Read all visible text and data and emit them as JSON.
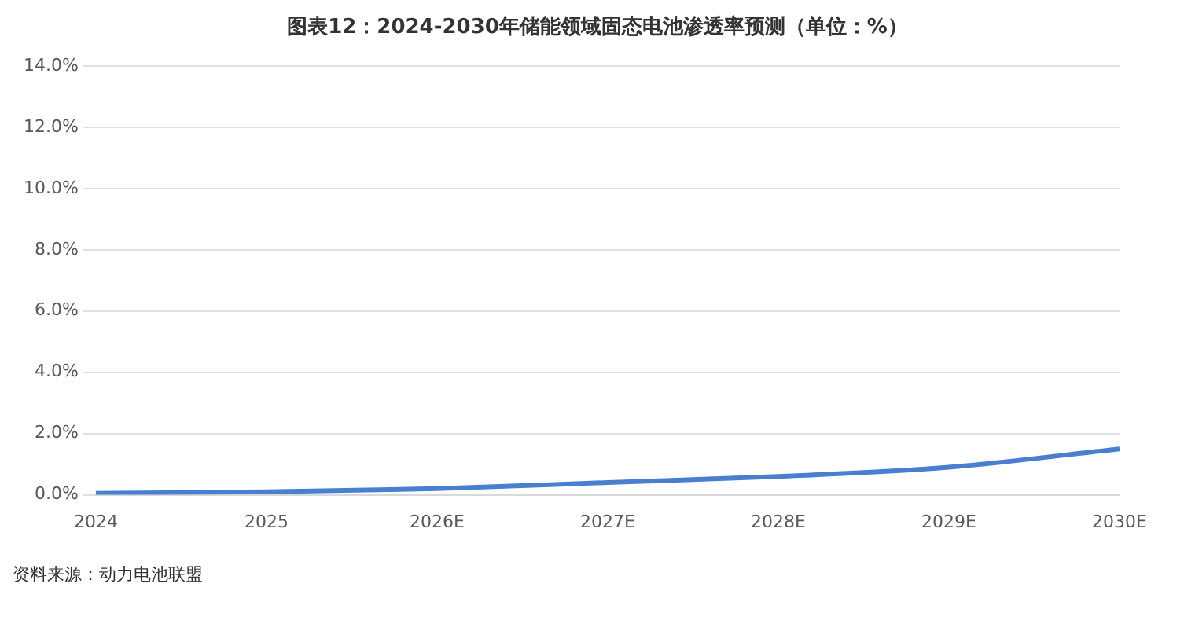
{
  "chart_data": {
    "type": "line",
    "title": "图表12：2024-2030年储能领域固态电池渗透率预测（单位：%）",
    "categories": [
      "2024",
      "2025",
      "2026E",
      "2027E",
      "2028E",
      "2029E",
      "2030E"
    ],
    "series": [
      {
        "color": "#4a7fd0",
        "values": [
          0.05,
          0.1,
          0.2,
          0.4,
          0.6,
          0.9,
          1.5
        ]
      }
    ],
    "ylim": [
      0,
      14
    ],
    "yticks": [
      {
        "value": 0,
        "label": "0.0%"
      },
      {
        "value": 2,
        "label": "2.0%"
      },
      {
        "value": 4,
        "label": "4.0%"
      },
      {
        "value": 6,
        "label": "6.0%"
      },
      {
        "value": 8,
        "label": "8.0%"
      },
      {
        "value": 10,
        "label": "10.0%"
      },
      {
        "value": 12,
        "label": "12.0%"
      },
      {
        "value": 14,
        "label": "14.0%"
      }
    ],
    "grid": "y",
    "marker": "none",
    "line_style": "solid",
    "annotations": [
      "资料来源：动力电池联盟"
    ]
  }
}
